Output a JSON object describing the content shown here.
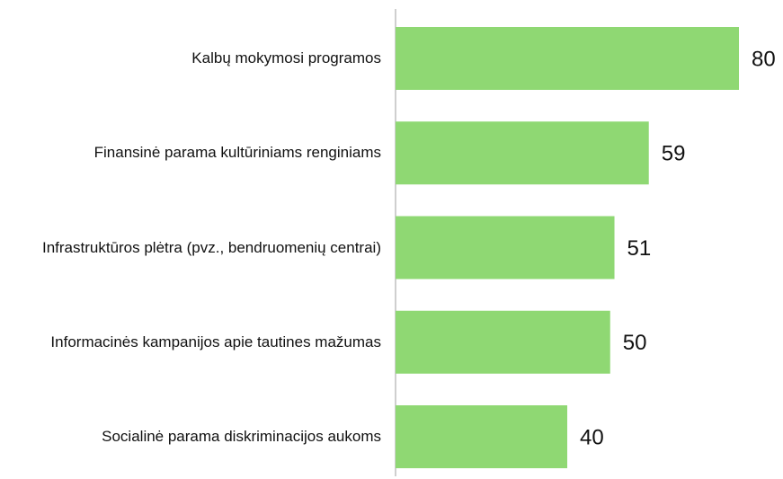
{
  "chart_data": {
    "type": "bar",
    "orientation": "horizontal",
    "categories": [
      "Kalbų mokymosi programos",
      "Finansinė parama kultūriniams renginiams",
      "Infrastruktūros plėtra (pvz., bendruomenių centrai)",
      "Informacinės kampanijos apie tautines mažumas",
      "Socialinė parama diskriminacijos aukoms"
    ],
    "values": [
      80,
      59,
      51,
      50,
      40
    ],
    "color": "#8fd873"
  }
}
